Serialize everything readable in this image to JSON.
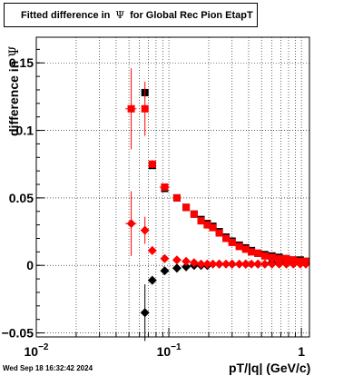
{
  "chart_data": {
    "type": "scatter",
    "title_prefix": "Fitted difference in",
    "title_symbol": "Ψ",
    "title_suffix": "for Global Rec Pion EtapT",
    "ylabel_prefix": "difference in",
    "ylabel_symbol": "Ψ",
    "xlabel": "pT/|q| (GeV/c)",
    "x_scale": "log",
    "xlim": [
      0.01,
      1.15
    ],
    "ylim": [
      -0.053,
      0.169
    ],
    "x_ticks": [
      {
        "value": 0.01,
        "base": "10",
        "exp": "−2"
      },
      {
        "value": 0.1,
        "base": "10",
        "exp": "−1"
      },
      {
        "value": 1,
        "base": "1",
        "exp": ""
      }
    ],
    "y_ticks": [
      {
        "value": -0.05,
        "label": "−0.05"
      },
      {
        "value": 0,
        "label": "0"
      },
      {
        "value": 0.05,
        "label": "0.05"
      },
      {
        "value": 0.1,
        "label": "0.1"
      },
      {
        "value": 0.15,
        "label": "0.15"
      }
    ],
    "grid": true,
    "timestamp": "Wed Sep 18 16:32:42 2024",
    "series": [
      {
        "color": "#000000",
        "marker": "square",
        "points": [
          {
            "x": 0.066,
            "y": 0.128,
            "xerr": 0.003,
            "yerr": 0.003
          },
          {
            "x": 0.075,
            "y": 0.074,
            "xerr": 0.003,
            "yerr": 0.002
          },
          {
            "x": 0.093,
            "y": 0.057,
            "xerr": 0.006,
            "yerr": 0.002
          },
          {
            "x": 0.115,
            "y": 0.05,
            "xerr": 0.006,
            "yerr": 0.001
          },
          {
            "x": 0.135,
            "y": 0.043,
            "xerr": 0.006,
            "yerr": 0.001
          },
          {
            "x": 0.155,
            "y": 0.038,
            "xerr": 0.005,
            "yerr": 0.001
          },
          {
            "x": 0.175,
            "y": 0.034,
            "xerr": 0.005,
            "yerr": 0.001
          },
          {
            "x": 0.195,
            "y": 0.031,
            "xerr": 0.005,
            "yerr": 0.001
          },
          {
            "x": 0.215,
            "y": 0.029,
            "xerr": 0.005,
            "yerr": 0.001
          },
          {
            "x": 0.24,
            "y": 0.025,
            "xerr": 0.005,
            "yerr": 0.001
          },
          {
            "x": 0.27,
            "y": 0.021,
            "xerr": 0.005,
            "yerr": 0.001
          },
          {
            "x": 0.3,
            "y": 0.018,
            "xerr": 0.005,
            "yerr": 0.001
          },
          {
            "x": 0.34,
            "y": 0.015,
            "xerr": 0.005,
            "yerr": 0.001
          },
          {
            "x": 0.38,
            "y": 0.013,
            "xerr": 0.005,
            "yerr": 0.001
          },
          {
            "x": 0.42,
            "y": 0.011,
            "xerr": 0.005,
            "yerr": 0.001
          },
          {
            "x": 0.47,
            "y": 0.009,
            "xerr": 0.005,
            "yerr": 0.001
          },
          {
            "x": 0.53,
            "y": 0.008,
            "xerr": 0.005,
            "yerr": 0.001
          },
          {
            "x": 0.6,
            "y": 0.007,
            "xerr": 0.005,
            "yerr": 0.001
          },
          {
            "x": 0.68,
            "y": 0.006,
            "xerr": 0.005,
            "yerr": 0.001
          },
          {
            "x": 0.77,
            "y": 0.005,
            "xerr": 0.005,
            "yerr": 0.001
          },
          {
            "x": 0.87,
            "y": 0.004,
            "xerr": 0.005,
            "yerr": 0.001
          },
          {
            "x": 0.98,
            "y": 0.004,
            "xerr": 0.005,
            "yerr": 0.001
          },
          {
            "x": 1.08,
            "y": 0.003,
            "xerr": 0.005,
            "yerr": 0.001
          }
        ]
      },
      {
        "color": "#000000",
        "marker": "diamond",
        "points": [
          {
            "x": 0.066,
            "y": -0.035,
            "xerr": 0.002,
            "yerr": 0.021
          },
          {
            "x": 0.075,
            "y": -0.011,
            "xerr": 0.002,
            "yerr": 0.002
          },
          {
            "x": 0.093,
            "y": -0.004,
            "xerr": 0.006,
            "yerr": 0.001
          },
          {
            "x": 0.115,
            "y": -0.002,
            "xerr": 0.006,
            "yerr": 0.001
          },
          {
            "x": 0.135,
            "y": -0.001,
            "xerr": 0.006,
            "yerr": 0.001
          },
          {
            "x": 0.155,
            "y": 0.0,
            "xerr": 0.005,
            "yerr": 0.001
          },
          {
            "x": 0.175,
            "y": 0.0,
            "xerr": 0.005,
            "yerr": 0.001
          },
          {
            "x": 0.195,
            "y": 0.0,
            "xerr": 0.005,
            "yerr": 0.001
          },
          {
            "x": 0.24,
            "y": 0.001,
            "xerr": 0.005,
            "yerr": 0.001
          },
          {
            "x": 0.3,
            "y": 0.001,
            "xerr": 0.005,
            "yerr": 0.001
          },
          {
            "x": 0.38,
            "y": 0.001,
            "xerr": 0.005,
            "yerr": 0.001
          },
          {
            "x": 0.47,
            "y": 0.001,
            "xerr": 0.005,
            "yerr": 0.001
          },
          {
            "x": 0.6,
            "y": 0.002,
            "xerr": 0.005,
            "yerr": 0.001
          },
          {
            "x": 0.77,
            "y": 0.002,
            "xerr": 0.005,
            "yerr": 0.001
          },
          {
            "x": 0.98,
            "y": 0.002,
            "xerr": 0.005,
            "yerr": 0.001
          }
        ]
      },
      {
        "color": "#ff0000",
        "marker": "square",
        "points": [
          {
            "x": 0.052,
            "y": 0.116,
            "xerr": 0.005,
            "yerr": 0.03
          },
          {
            "x": 0.066,
            "y": 0.116,
            "xerr": 0.003,
            "yerr": 0.02
          },
          {
            "x": 0.075,
            "y": 0.075,
            "xerr": 0.003,
            "yerr": 0.003
          },
          {
            "x": 0.093,
            "y": 0.058,
            "xerr": 0.008,
            "yerr": 0.002
          },
          {
            "x": 0.115,
            "y": 0.05,
            "xerr": 0.006,
            "yerr": 0.001
          },
          {
            "x": 0.135,
            "y": 0.043,
            "xerr": 0.006,
            "yerr": 0.001
          },
          {
            "x": 0.155,
            "y": 0.038,
            "xerr": 0.005,
            "yerr": 0.001
          },
          {
            "x": 0.175,
            "y": 0.033,
            "xerr": 0.005,
            "yerr": 0.001
          },
          {
            "x": 0.195,
            "y": 0.03,
            "xerr": 0.005,
            "yerr": 0.001
          },
          {
            "x": 0.215,
            "y": 0.028,
            "xerr": 0.005,
            "yerr": 0.001
          },
          {
            "x": 0.24,
            "y": 0.024,
            "xerr": 0.005,
            "yerr": 0.001
          },
          {
            "x": 0.27,
            "y": 0.02,
            "xerr": 0.005,
            "yerr": 0.001
          },
          {
            "x": 0.3,
            "y": 0.017,
            "xerr": 0.005,
            "yerr": 0.001
          },
          {
            "x": 0.34,
            "y": 0.014,
            "xerr": 0.005,
            "yerr": 0.001
          },
          {
            "x": 0.38,
            "y": 0.012,
            "xerr": 0.005,
            "yerr": 0.001
          },
          {
            "x": 0.42,
            "y": 0.01,
            "xerr": 0.005,
            "yerr": 0.001
          },
          {
            "x": 0.47,
            "y": 0.009,
            "xerr": 0.005,
            "yerr": 0.001
          },
          {
            "x": 0.53,
            "y": 0.007,
            "xerr": 0.005,
            "yerr": 0.001
          },
          {
            "x": 0.6,
            "y": 0.006,
            "xerr": 0.005,
            "yerr": 0.001
          },
          {
            "x": 0.68,
            "y": 0.005,
            "xerr": 0.005,
            "yerr": 0.001
          },
          {
            "x": 0.77,
            "y": 0.005,
            "xerr": 0.005,
            "yerr": 0.001
          },
          {
            "x": 0.87,
            "y": 0.004,
            "xerr": 0.005,
            "yerr": 0.001
          },
          {
            "x": 0.98,
            "y": 0.003,
            "xerr": 0.005,
            "yerr": 0.001
          },
          {
            "x": 1.08,
            "y": 0.003,
            "xerr": 0.005,
            "yerr": 0.001
          }
        ]
      },
      {
        "color": "#ff0000",
        "marker": "diamond",
        "points": [
          {
            "x": 0.052,
            "y": 0.031,
            "xerr": 0.005,
            "yerr": 0.024
          },
          {
            "x": 0.066,
            "y": 0.026,
            "xerr": 0.003,
            "yerr": 0.01
          },
          {
            "x": 0.075,
            "y": 0.011,
            "xerr": 0.003,
            "yerr": 0.003
          },
          {
            "x": 0.093,
            "y": 0.005,
            "xerr": 0.006,
            "yerr": 0.001
          },
          {
            "x": 0.115,
            "y": 0.004,
            "xerr": 0.006,
            "yerr": 0.001
          },
          {
            "x": 0.135,
            "y": 0.003,
            "xerr": 0.006,
            "yerr": 0.001
          },
          {
            "x": 0.155,
            "y": 0.002,
            "xerr": 0.005,
            "yerr": 0.001
          },
          {
            "x": 0.175,
            "y": 0.001,
            "xerr": 0.005,
            "yerr": 0.001
          },
          {
            "x": 0.195,
            "y": 0.001,
            "xerr": 0.005,
            "yerr": 0.001
          },
          {
            "x": 0.215,
            "y": 0.001,
            "xerr": 0.005,
            "yerr": 0.001
          },
          {
            "x": 0.24,
            "y": 0.001,
            "xerr": 0.005,
            "yerr": 0.001
          },
          {
            "x": 0.27,
            "y": 0.001,
            "xerr": 0.005,
            "yerr": 0.001
          },
          {
            "x": 0.3,
            "y": 0.001,
            "xerr": 0.005,
            "yerr": 0.001
          },
          {
            "x": 0.34,
            "y": 0.001,
            "xerr": 0.005,
            "yerr": 0.001
          },
          {
            "x": 0.38,
            "y": 0.001,
            "xerr": 0.005,
            "yerr": 0.001
          },
          {
            "x": 0.42,
            "y": 0.001,
            "xerr": 0.005,
            "yerr": 0.001
          },
          {
            "x": 0.47,
            "y": 0.001,
            "xerr": 0.005,
            "yerr": 0.001
          },
          {
            "x": 0.53,
            "y": 0.001,
            "xerr": 0.005,
            "yerr": 0.001
          },
          {
            "x": 0.6,
            "y": 0.001,
            "xerr": 0.005,
            "yerr": 0.001
          },
          {
            "x": 0.68,
            "y": 0.001,
            "xerr": 0.005,
            "yerr": 0.001
          },
          {
            "x": 0.77,
            "y": 0.001,
            "xerr": 0.005,
            "yerr": 0.001
          },
          {
            "x": 0.87,
            "y": 0.001,
            "xerr": 0.005,
            "yerr": 0.001
          },
          {
            "x": 0.98,
            "y": 0.001,
            "xerr": 0.005,
            "yerr": 0.001
          },
          {
            "x": 1.08,
            "y": 0.001,
            "xerr": 0.005,
            "yerr": 0.001
          }
        ]
      }
    ]
  }
}
